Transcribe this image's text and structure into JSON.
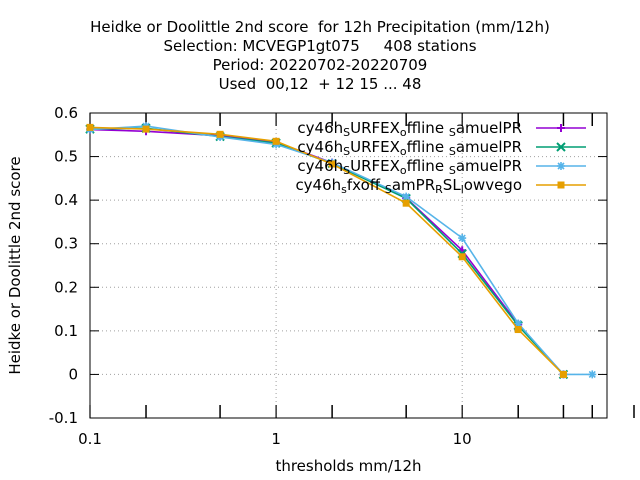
{
  "chart_data": {
    "type": "line",
    "title_lines": [
      "Heidke or Doolittle 2nd score  for 12h Precipitation (mm/12h)",
      "Selection: MCVEGP1gt075     408 stations",
      "Period: 20220702-20220709",
      "Used  00,12  + 12 15 ... 48"
    ],
    "xlabel": "thresholds mm/12h",
    "ylabel": "Heidke or Doolittle 2nd score",
    "x_scale": "log",
    "xlim": [
      0.1,
      60
    ],
    "ylim": [
      -0.1,
      0.6
    ],
    "x_ticks": [
      {
        "value": 0.1,
        "label": "0.1"
      },
      {
        "value": 1,
        "label": "1"
      },
      {
        "value": 10,
        "label": "10"
      }
    ],
    "x_minor_ticks": [
      0.2,
      0.5,
      2,
      5,
      20,
      35,
      50
    ],
    "y_ticks": [
      {
        "value": -0.1,
        "label": "-0.1"
      },
      {
        "value": 0,
        "label": "0"
      },
      {
        "value": 0.1,
        "label": "0.1"
      },
      {
        "value": 0.2,
        "label": "0.2"
      },
      {
        "value": 0.3,
        "label": "0.3"
      },
      {
        "value": 0.4,
        "label": "0.4"
      },
      {
        "value": 0.5,
        "label": "0.5"
      },
      {
        "value": 0.6,
        "label": "0.6"
      }
    ],
    "grid": true,
    "legend_position": "top-right",
    "series": [
      {
        "name": "cy46h_SURFEX_offline_SamuelPR",
        "label_parts": [
          [
            "cy46h",
            "n"
          ],
          [
            "S",
            "s"
          ],
          [
            "URFEX",
            "n"
          ],
          [
            "o",
            "s"
          ],
          [
            "ffline ",
            "n"
          ],
          [
            "S",
            "s"
          ],
          [
            "amuelPR",
            "n"
          ]
        ],
        "color": "#9400d3",
        "marker": "plus",
        "x": [
          0.1,
          0.2,
          0.5,
          1,
          2,
          5,
          10,
          20,
          35
        ],
        "y": [
          0.562,
          0.558,
          0.548,
          0.533,
          0.486,
          0.405,
          0.285,
          0.115,
          0.0
        ]
      },
      {
        "name": "cy46h_SURFEX_offline_SamuelPR",
        "label_parts": [
          [
            "cy46h",
            "n"
          ],
          [
            "S",
            "s"
          ],
          [
            "URFEX",
            "n"
          ],
          [
            "o",
            "s"
          ],
          [
            "ffline ",
            "n"
          ],
          [
            "S",
            "s"
          ],
          [
            "amuelPR",
            "n"
          ]
        ],
        "color": "#009e73",
        "marker": "x",
        "x": [
          0.1,
          0.2,
          0.5,
          1,
          2,
          5,
          10,
          20,
          35
        ],
        "y": [
          0.563,
          0.565,
          0.546,
          0.531,
          0.484,
          0.404,
          0.277,
          0.112,
          0.0
        ]
      },
      {
        "name": "cy46h_SURFEX_offline_SamuelPR",
        "label_parts": [
          [
            "cy46h",
            "n"
          ],
          [
            "S",
            "s"
          ],
          [
            "URFEX",
            "n"
          ],
          [
            "o",
            "s"
          ],
          [
            "ffline ",
            "n"
          ],
          [
            "S",
            "s"
          ],
          [
            "amuelPR",
            "n"
          ]
        ],
        "color": "#56b4e9",
        "marker": "star",
        "x": [
          0.1,
          0.2,
          0.5,
          1,
          2,
          5,
          10,
          20,
          35,
          50
        ],
        "y": [
          0.562,
          0.57,
          0.545,
          0.528,
          0.486,
          0.408,
          0.313,
          0.117,
          0.0,
          0.0
        ]
      },
      {
        "name": "cy46h_sfxoff_SamPR_RSL_lowvego",
        "label_parts": [
          [
            "cy46h",
            "n"
          ],
          [
            "s",
            "s"
          ],
          [
            "fxoff ",
            "n"
          ],
          [
            "S",
            "s"
          ],
          [
            "amPR",
            "n"
          ],
          [
            "R",
            "s"
          ],
          [
            "SL",
            "n"
          ],
          [
            "l",
            "s"
          ],
          [
            "owvego",
            "n"
          ]
        ],
        "color": "#e69f00",
        "marker": "box",
        "x": [
          0.1,
          0.2,
          0.5,
          1,
          2,
          5,
          10,
          20,
          35
        ],
        "y": [
          0.567,
          0.563,
          0.551,
          0.535,
          0.483,
          0.393,
          0.27,
          0.103,
          0.0
        ]
      }
    ]
  }
}
